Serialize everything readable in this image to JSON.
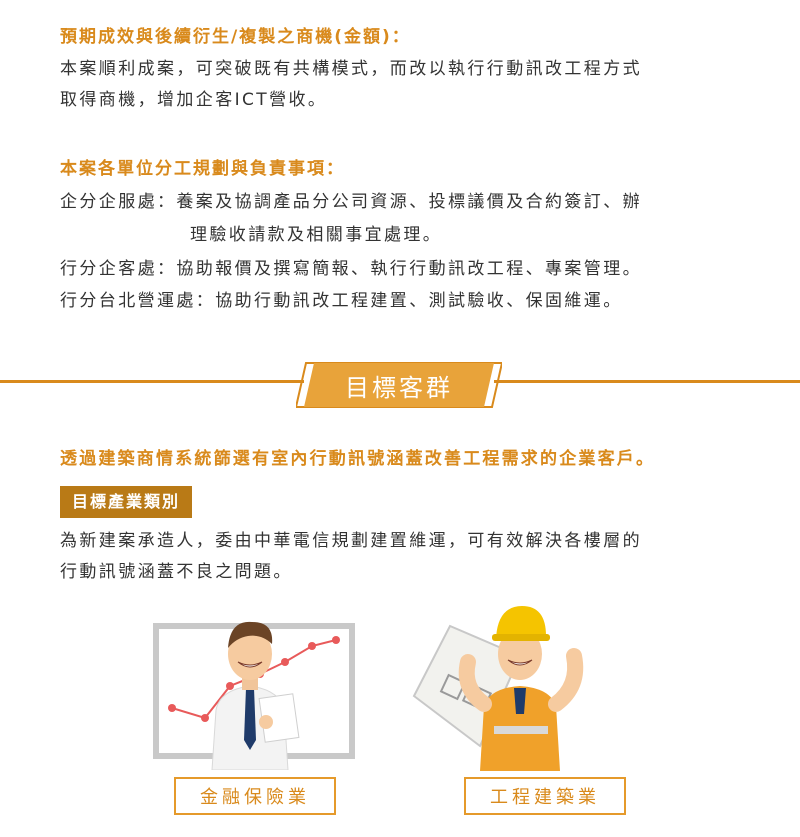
{
  "outcome": {
    "heading": "預期成效與後續衍生/複製之商機(金額)：",
    "lines": [
      "本案順利成案，可突破既有共構模式，而改以執行行動訊改工程方式",
      "取得商機，增加企客ICT營收。"
    ]
  },
  "duties": {
    "heading": "本案各單位分工規劃與負責事項：",
    "rows": [
      {
        "unit": "企分企服處：",
        "text": "養案及協調產品分公司資源、投標議價及合約簽訂、辦",
        "cont": "理驗收請款及相關事宜處理。"
      },
      {
        "unit": "行分企客處：",
        "text": "協助報價及撰寫簡報、執行行動訊改工程、專案管理。"
      },
      {
        "unit": "行分台北營運處：",
        "text": "協助行動訊改工程建置、測試驗收、保固維運。"
      }
    ]
  },
  "target": {
    "banner_title": "目標客群",
    "summary": "透過建築商情系統篩選有室內行動訊號涵蓋改善工程需求的企業客戶。",
    "tag": "目標產業類別",
    "lines": [
      "為新建案承造人，委由中華電信規劃建置維運，可有效解決各樓層的",
      "行動訊號涵蓋不良之問題。"
    ],
    "cards": [
      {
        "label": "金融保險業",
        "icon": "businessman-chart-illustration"
      },
      {
        "label": "工程建築業",
        "icon": "construction-worker-illustration"
      }
    ]
  },
  "colors": {
    "accent": "#d98a1c",
    "tag_bg": "#b97a16",
    "banner_bg": "#e8a33a"
  }
}
